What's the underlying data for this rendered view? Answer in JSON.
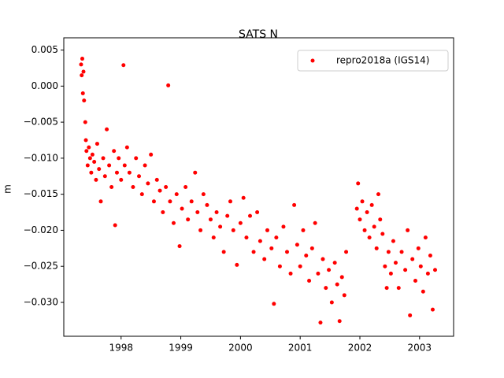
{
  "chart_data": {
    "type": "scatter",
    "title": "SATS N",
    "y_label": "m",
    "xlim": [
      1997.04,
      2003.57
    ],
    "xticks": [
      1998,
      1999,
      2000,
      2001,
      2002,
      2003
    ],
    "ylim": [
      -0.0347,
      0.0067
    ],
    "yticks": [
      {
        "value": 0.005,
        "label": "0.005"
      },
      {
        "value": 0,
        "label": "0.000"
      },
      {
        "value": -0.005,
        "label": "−0.005"
      },
      {
        "value": -0.01,
        "label": "−0.010"
      },
      {
        "value": -0.015,
        "label": "−0.015"
      },
      {
        "value": -0.02,
        "label": "−0.020"
      },
      {
        "value": -0.025,
        "label": "−0.025"
      },
      {
        "value": -0.03,
        "label": "−0.030"
      }
    ],
    "legend": "upper right",
    "x": [
      1997.33,
      1997.34,
      1997.35,
      1997.36,
      1997.37,
      1997.38,
      1997.4,
      1997.41,
      1997.42,
      1997.44,
      1997.46,
      1997.48,
      1997.5,
      1997.52,
      1997.55,
      1997.58,
      1997.6,
      1997.63,
      1997.66,
      1997.7,
      1997.73,
      1997.76,
      1997.8,
      1997.84,
      1997.88,
      1997.9,
      1997.93,
      1997.96,
      1998.0,
      1998.04,
      1998.06,
      1998.1,
      1998.14,
      1998.2,
      1998.25,
      1998.3,
      1998.35,
      1998.4,
      1998.45,
      1998.5,
      1998.55,
      1998.6,
      1998.65,
      1998.7,
      1998.75,
      1998.79,
      1998.82,
      1998.88,
      1998.93,
      1998.98,
      1999.02,
      1999.08,
      1999.12,
      1999.18,
      1999.24,
      1999.28,
      1999.33,
      1999.38,
      1999.44,
      1999.5,
      1999.55,
      1999.6,
      1999.66,
      1999.72,
      1999.78,
      1999.83,
      1999.88,
      1999.94,
      2000.0,
      2000.05,
      2000.1,
      2000.16,
      2000.22,
      2000.28,
      2000.33,
      2000.4,
      2000.45,
      2000.52,
      2000.56,
      2000.6,
      2000.66,
      2000.72,
      2000.78,
      2000.84,
      2000.9,
      2000.95,
      2001.0,
      2001.05,
      2001.1,
      2001.15,
      2001.2,
      2001.25,
      2001.3,
      2001.34,
      2001.38,
      2001.43,
      2001.48,
      2001.53,
      2001.58,
      2001.62,
      2001.66,
      2001.7,
      2001.74,
      2001.77,
      2001.95,
      2001.97,
      2002.0,
      2002.04,
      2002.08,
      2002.12,
      2002.16,
      2002.2,
      2002.24,
      2002.28,
      2002.31,
      2002.34,
      2002.38,
      2002.42,
      2002.45,
      2002.48,
      2002.52,
      2002.56,
      2002.6,
      2002.65,
      2002.7,
      2002.76,
      2002.8,
      2002.84,
      2002.88,
      2002.93,
      2002.98,
      2003.02,
      2003.06,
      2003.1,
      2003.14,
      2003.18,
      2003.22,
      2003.26
    ],
    "series": [
      {
        "name": "repro2018a (IGS14)",
        "color": "#ff0000",
        "values": [
          0.003,
          0.0015,
          0.0038,
          -0.001,
          0.002,
          -0.002,
          -0.005,
          -0.0075,
          -0.009,
          -0.011,
          -0.0085,
          -0.01,
          -0.012,
          -0.0095,
          -0.0105,
          -0.013,
          -0.008,
          -0.0115,
          -0.016,
          -0.01,
          -0.0125,
          -0.006,
          -0.011,
          -0.014,
          -0.009,
          -0.0193,
          -0.012,
          -0.01,
          -0.013,
          0.0029,
          -0.011,
          -0.0085,
          -0.012,
          -0.014,
          -0.01,
          -0.0125,
          -0.015,
          -0.011,
          -0.0135,
          -0.0095,
          -0.016,
          -0.013,
          -0.0145,
          -0.0175,
          -0.014,
          0.0001,
          -0.016,
          -0.019,
          -0.015,
          -0.0222,
          -0.017,
          -0.014,
          -0.0185,
          -0.016,
          -0.012,
          -0.0175,
          -0.02,
          -0.015,
          -0.0165,
          -0.0185,
          -0.021,
          -0.0175,
          -0.0195,
          -0.023,
          -0.018,
          -0.016,
          -0.02,
          -0.0248,
          -0.019,
          -0.0155,
          -0.021,
          -0.018,
          -0.023,
          -0.0175,
          -0.0215,
          -0.024,
          -0.02,
          -0.0225,
          -0.0302,
          -0.021,
          -0.025,
          -0.0195,
          -0.023,
          -0.026,
          -0.0165,
          -0.022,
          -0.025,
          -0.02,
          -0.0235,
          -0.027,
          -0.0225,
          -0.019,
          -0.026,
          -0.0328,
          -0.024,
          -0.028,
          -0.0255,
          -0.03,
          -0.0245,
          -0.0275,
          -0.0326,
          -0.0265,
          -0.029,
          -0.023,
          -0.017,
          -0.0135,
          -0.0185,
          -0.016,
          -0.02,
          -0.0175,
          -0.021,
          -0.0165,
          -0.0195,
          -0.0225,
          -0.015,
          -0.0185,
          -0.0205,
          -0.025,
          -0.028,
          -0.023,
          -0.026,
          -0.0215,
          -0.0245,
          -0.028,
          -0.023,
          -0.0255,
          -0.02,
          -0.0318,
          -0.024,
          -0.027,
          -0.0225,
          -0.025,
          -0.0285,
          -0.021,
          -0.026,
          -0.0235,
          -0.031,
          -0.0255
        ]
      }
    ]
  }
}
